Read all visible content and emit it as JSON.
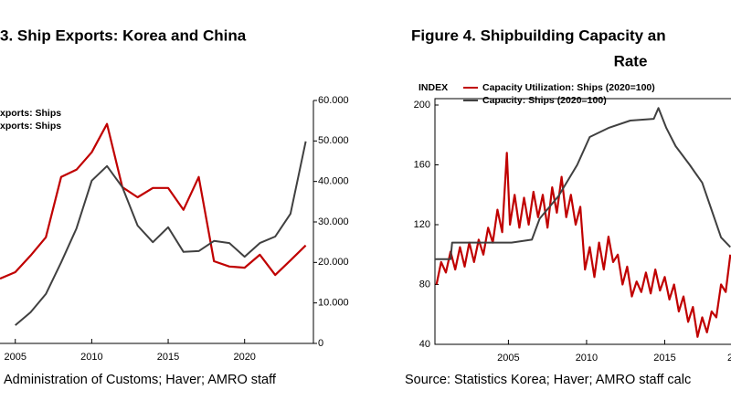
{
  "chart_data": [
    {
      "type": "line",
      "title": "3. Ship Exports: Korea and China",
      "x": [
        2004,
        2005,
        2006,
        2007,
        2008,
        2009,
        2010,
        2011,
        2012,
        2013,
        2014,
        2015,
        2016,
        2017,
        2018,
        2019,
        2020,
        2021,
        2022,
        2023,
        2024
      ],
      "series": [
        {
          "name": "xports: Ships",
          "color": "#c00000",
          "values": [
            16000,
            17600,
            21700,
            26200,
            41100,
            42900,
            47200,
            54200,
            38600,
            36100,
            38400,
            38400,
            33000,
            41100,
            20300,
            19000,
            18700,
            21900,
            16900,
            20500,
            24200
          ]
        },
        {
          "name": "xports: Ships",
          "color": "#404040",
          "values": [
            null,
            4500,
            7700,
            12200,
            20000,
            28400,
            40200,
            43800,
            38600,
            29100,
            25000,
            28700,
            22600,
            22800,
            25300,
            24800,
            21400,
            24800,
            26400,
            32000,
            49900
          ]
        }
      ],
      "xlim": [
        2004,
        2024.5
      ],
      "xticks": [
        2005,
        2010,
        2015,
        2020
      ],
      "ylim": [
        0,
        60000
      ],
      "yticks": [
        0,
        {
          "value": 10000,
          "label": "10.000"
        },
        {
          "value": 20000,
          "label": "20.000"
        },
        {
          "value": 30000,
          "label": "30.000"
        },
        {
          "value": 40000,
          "label": "40.000"
        },
        {
          "value": 50000,
          "label": "50.000"
        },
        {
          "value": 60000,
          "label": "60.000"
        }
      ],
      "y_axis_side": "right",
      "source": "Administration of Customs; Haver; AMRO staff"
    },
    {
      "type": "line",
      "title": [
        "Figure 4. Shipbuilding Capacity an",
        "Rate"
      ],
      "ylabel": "INDEX",
      "series": [
        {
          "name": "Capacity Utilization: Ships (2020=100)",
          "color": "#c00000",
          "x": [
            2000.4,
            2000.7,
            2001.0,
            2001.3,
            2001.6,
            2001.9,
            2002.2,
            2002.5,
            2002.8,
            2003.1,
            2003.4,
            2003.7,
            2004.0,
            2004.3,
            2004.6,
            2004.9,
            2005.1,
            2005.4,
            2005.7,
            2006.0,
            2006.3,
            2006.6,
            2006.9,
            2007.2,
            2007.5,
            2007.8,
            2008.1,
            2008.4,
            2008.7,
            2009.0,
            2009.3,
            2009.6,
            2009.9,
            2010.2,
            2010.5,
            2010.8,
            2011.1,
            2011.4,
            2011.7,
            2012.0,
            2012.3,
            2012.6,
            2012.9,
            2013.2,
            2013.5,
            2013.8,
            2014.1,
            2014.4,
            2014.7,
            2015.0,
            2015.3,
            2015.6,
            2015.9,
            2016.2,
            2016.5,
            2016.8,
            2017.1,
            2017.4,
            2017.7,
            2018.0,
            2018.3,
            2018.6,
            2018.9,
            2019.2
          ],
          "values": [
            80,
            95,
            88,
            102,
            90,
            105,
            92,
            108,
            95,
            110,
            100,
            118,
            108,
            130,
            115,
            168,
            120,
            140,
            118,
            138,
            120,
            142,
            125,
            140,
            118,
            145,
            128,
            152,
            125,
            140,
            120,
            132,
            90,
            105,
            85,
            108,
            90,
            112,
            95,
            100,
            80,
            92,
            72,
            82,
            75,
            88,
            74,
            90,
            76,
            85,
            70,
            80,
            62,
            72,
            55,
            65,
            45,
            58,
            48,
            62,
            58,
            80,
            75,
            100
          ]
        },
        {
          "name": "Capacity: Ships (2020=100)",
          "color": "#404040",
          "x": [
            2000.3,
            2001.3,
            2001.4,
            2005.2,
            2006.5,
            2007,
            2008.2,
            2009.4,
            2010.2,
            2011.4,
            2012.8,
            2014.3,
            2014.6,
            2015.1,
            2015.7,
            2016.6,
            2017.4,
            2018,
            2018.6,
            2019.2
          ],
          "values": [
            97,
            97,
            108,
            108,
            110,
            124,
            139,
            160,
            178.6,
            184.7,
            189.6,
            190.8,
            198,
            184.7,
            172.5,
            160,
            148,
            129.8,
            111.5,
            105
          ]
        }
      ],
      "xlim": [
        2000.3,
        2020
      ],
      "xticks": [
        2005,
        2010,
        2015,
        {
          "value": 2020,
          "label": "2"
        }
      ],
      "ylim": [
        40,
        200
      ],
      "yticks": [
        40,
        80,
        120,
        160,
        200
      ],
      "source": "Source: Statistics Korea; Haver; AMRO staff calc"
    }
  ]
}
